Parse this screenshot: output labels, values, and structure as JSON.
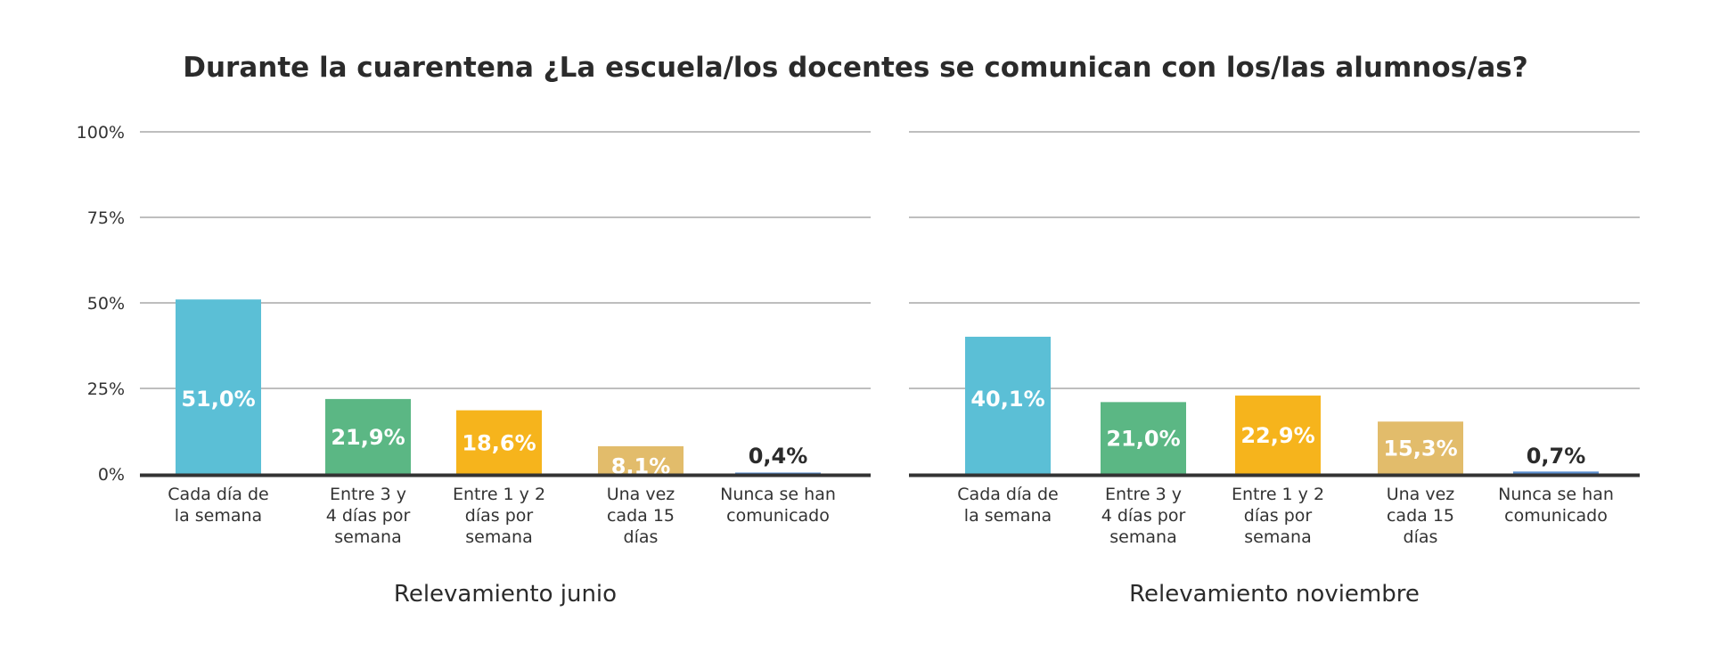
{
  "title": "Durante la cuarentena ¿La escuela/los docentes se comunican con los/las alumnos/as?",
  "y_ticks": [
    "100%",
    "75%",
    "50%",
    "25%",
    "0%"
  ],
  "chart_data": [
    {
      "type": "bar",
      "xlabel": "Relevamiento junio",
      "ylim": [
        0,
        100
      ],
      "categories": [
        [
          "Cada día de",
          "la semana"
        ],
        [
          "Entre 3 y",
          "4 días por",
          "semana"
        ],
        [
          "Entre 1 y 2",
          "días por",
          "semana"
        ],
        [
          "Una vez",
          "cada 15",
          "días"
        ],
        [
          "Nunca se han",
          "comunicado"
        ]
      ],
      "values": [
        51.0,
        21.9,
        18.6,
        8.1,
        0.4
      ],
      "value_labels": [
        "51,0%",
        "21,9%",
        "18,6%",
        "8,1%",
        "0,4%"
      ],
      "colors": [
        "#5bbfd6",
        "#5bb784",
        "#f6b41c",
        "#e2bc6b",
        "#5b8fcf"
      ],
      "grid": true
    },
    {
      "type": "bar",
      "xlabel": "Relevamiento noviembre",
      "ylim": [
        0,
        100
      ],
      "categories": [
        [
          "Cada día de",
          "la semana"
        ],
        [
          "Entre 3 y",
          "4 días por",
          "semana"
        ],
        [
          "Entre 1 y 2",
          "días por",
          "semana"
        ],
        [
          "Una vez",
          "cada 15",
          "días"
        ],
        [
          "Nunca se han",
          "comunicado"
        ]
      ],
      "values": [
        40.1,
        21.0,
        22.9,
        15.3,
        0.7
      ],
      "value_labels": [
        "40,1%",
        "21,0%",
        "22,9%",
        "15,3%",
        "0,7%"
      ],
      "colors": [
        "#5bbfd6",
        "#5bb784",
        "#f6b41c",
        "#e2bc6b",
        "#5b8fcf"
      ],
      "grid": true
    }
  ]
}
